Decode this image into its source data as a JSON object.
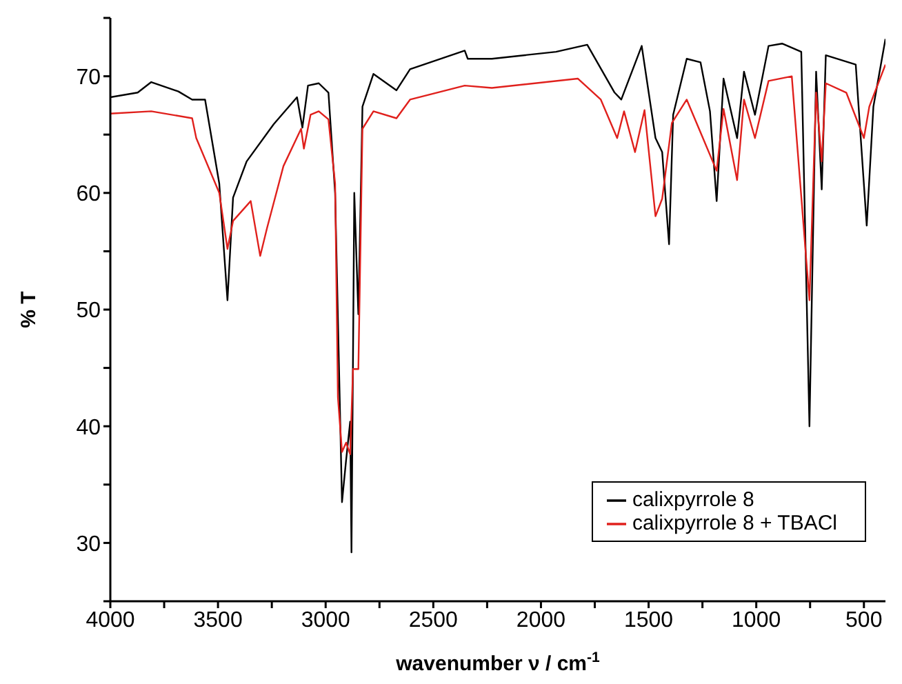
{
  "chart_data": {
    "type": "line",
    "xlabel": "wavenumber ν / cm$^{-1}$",
    "ylabel": "% T",
    "xlim": [
      4000,
      400
    ],
    "ylim": [
      25,
      75
    ],
    "xticks": [
      4000,
      {
        "value": 3750,
        "label": null
      },
      3500,
      {
        "value": 3250,
        "label": null
      },
      3000,
      {
        "value": 2750,
        "label": null
      },
      2500,
      {
        "value": 2250,
        "label": null
      },
      2000,
      {
        "value": 1750,
        "label": null
      },
      1500,
      {
        "value": 1250,
        "label": null
      },
      1000,
      {
        "value": 750,
        "label": null
      },
      500
    ],
    "yticks": [
      {
        "value": 25,
        "label": null
      },
      30,
      {
        "value": 35,
        "label": null
      },
      40,
      {
        "value": 45,
        "label": null
      },
      50,
      {
        "value": 55,
        "label": null
      },
      60,
      {
        "value": 65,
        "label": null
      },
      70,
      {
        "value": 75,
        "label": null
      }
    ],
    "legend": "bottom right",
    "marker": "none",
    "line_style": "solid",
    "series": [
      {
        "name": "calixpyrrole 8",
        "color": "#000000",
        "x": [
          4000,
          3873,
          3810,
          3684,
          3620,
          3560,
          3494,
          3456,
          3430,
          3367,
          3241,
          3133,
          3108,
          3082,
          3032,
          2987,
          2956,
          2924,
          2905,
          2886,
          2880,
          2867,
          2848,
          2829,
          2778,
          2671,
          2608,
          2354,
          2340,
          2228,
          1930,
          1785,
          1658,
          1627,
          1532,
          1468,
          1437,
          1405,
          1386,
          1323,
          1259,
          1215,
          1184,
          1152,
          1089,
          1057,
          1006,
          943,
          880,
          791,
          753,
          722,
          696,
          677,
          538,
          487,
          456,
          400
        ],
        "values": [
          68.2,
          68.6,
          69.5,
          68.7,
          68,
          68,
          60.8,
          50.8,
          59.6,
          62.7,
          65.9,
          68.2,
          65.6,
          69.2,
          69.4,
          68.6,
          60,
          33.5,
          37.1,
          40.4,
          29.2,
          60,
          49.6,
          67.4,
          70.2,
          68.8,
          70.6,
          72.2,
          71.5,
          71.5,
          72.1,
          72.7,
          68.6,
          68,
          72.6,
          64.7,
          63.5,
          55.6,
          66.7,
          71.5,
          71.2,
          67,
          59.3,
          69.8,
          64.7,
          70.4,
          66.7,
          72.6,
          72.8,
          72.1,
          40,
          70.4,
          60.3,
          71.8,
          71,
          57.2,
          67.4,
          73.2
        ]
      },
      {
        "name": "calixpyrrole 8 + TBACl",
        "color": "#e0201c",
        "x": [
          4000,
          3810,
          3620,
          3601,
          3494,
          3456,
          3430,
          3348,
          3304,
          3272,
          3196,
          3114,
          3101,
          3070,
          3032,
          2987,
          2956,
          2943,
          2924,
          2905,
          2886,
          2873,
          2848,
          2829,
          2778,
          2671,
          2608,
          2354,
          2228,
          1829,
          1722,
          1646,
          1614,
          1563,
          1519,
          1468,
          1437,
          1392,
          1323,
          1184,
          1152,
          1089,
          1057,
          1006,
          943,
          835,
          753,
          722,
          696,
          677,
          582,
          500,
          475,
          400
        ],
        "values": [
          66.8,
          67,
          66.4,
          64.7,
          60,
          55.2,
          57.6,
          59.3,
          54.6,
          57,
          62.3,
          65.5,
          63.8,
          66.7,
          67,
          66.3,
          60.8,
          42.5,
          37.8,
          38.6,
          37.6,
          44.9,
          44.9,
          65.5,
          67,
          66.4,
          68,
          69.2,
          69,
          69.8,
          68,
          64.7,
          67,
          63.5,
          67.1,
          58,
          59.5,
          66,
          68,
          61.9,
          67.2,
          61.1,
          68,
          64.7,
          69.6,
          70,
          50.8,
          68.6,
          62.7,
          69.4,
          68.6,
          64.7,
          67.4,
          71
        ]
      }
    ]
  }
}
